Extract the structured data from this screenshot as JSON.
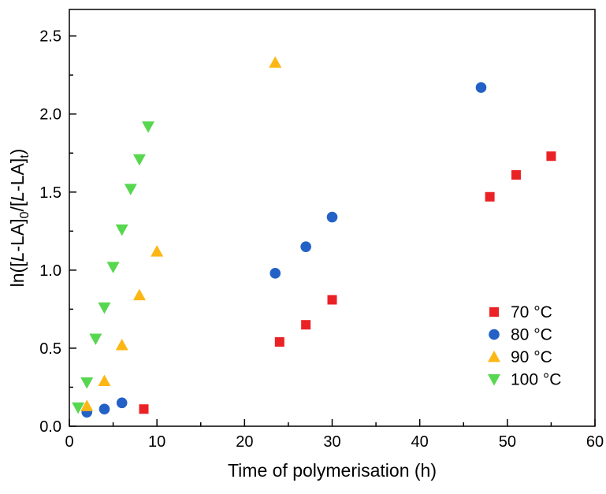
{
  "chart_data": {
    "type": "scatter",
    "title": "",
    "xlabel": "Time of polymerisation (h)",
    "ylabel": "ln([L-LA]0/[L-LA]t)",
    "ylabel_parts": [
      {
        "t": "ln([",
        "s": "n"
      },
      {
        "t": "L",
        "s": "i"
      },
      {
        "t": "-LA]",
        "s": "n"
      },
      {
        "t": "0",
        "s": "sub"
      },
      {
        "t": "/[",
        "s": "n"
      },
      {
        "t": "L",
        "s": "i"
      },
      {
        "t": "-LA]",
        "s": "n"
      },
      {
        "t": "t",
        "s": "sub"
      },
      {
        "t": ")",
        "s": "n"
      }
    ],
    "xlim": [
      0,
      60
    ],
    "ylim": [
      0,
      2.67
    ],
    "grid": false,
    "legend_position": "inside-right",
    "x_major_ticks": [
      {
        "v": 0,
        "label": "0"
      },
      {
        "v": 10,
        "label": "10"
      },
      {
        "v": 20,
        "label": "20"
      },
      {
        "v": 30,
        "label": "30"
      },
      {
        "v": 40,
        "label": "40"
      },
      {
        "v": 50,
        "label": "50"
      },
      {
        "v": 60,
        "label": "60"
      }
    ],
    "x_minor_step": 5,
    "y_major_ticks": [
      {
        "v": 0,
        "label": "0.0"
      },
      {
        "v": 0.5,
        "label": "0.5"
      },
      {
        "v": 1.0,
        "label": "1.0"
      },
      {
        "v": 1.5,
        "label": "1.5"
      },
      {
        "v": 2.0,
        "label": "2.0"
      },
      {
        "v": 2.5,
        "label": "2.5"
      }
    ],
    "y_minor_step": 0.25,
    "series": [
      {
        "name": "70 °C",
        "marker": "square",
        "color": "#ea2125",
        "points": [
          [
            8.5,
            0.11
          ],
          [
            24,
            0.54
          ],
          [
            27,
            0.65
          ],
          [
            30,
            0.81
          ],
          [
            48,
            1.47
          ],
          [
            51,
            1.61
          ],
          [
            55,
            1.73
          ]
        ]
      },
      {
        "name": "80 °C",
        "marker": "circle",
        "color": "#2361c7",
        "points": [
          [
            2,
            0.09
          ],
          [
            4,
            0.11
          ],
          [
            6,
            0.15
          ],
          [
            23.5,
            0.98
          ],
          [
            27,
            1.15
          ],
          [
            30,
            1.34
          ],
          [
            47,
            2.17
          ]
        ]
      },
      {
        "name": "90 °C",
        "marker": "triangle-up",
        "color": "#fcb714",
        "points": [
          [
            2,
            0.13
          ],
          [
            4,
            0.29
          ],
          [
            6,
            0.52
          ],
          [
            8,
            0.84
          ],
          [
            10,
            1.12
          ],
          [
            23.5,
            2.33
          ]
        ]
      },
      {
        "name": "100 °C",
        "marker": "triangle-down",
        "color": "#57d64f",
        "points": [
          [
            1,
            0.12
          ],
          [
            2,
            0.28
          ],
          [
            3,
            0.56
          ],
          [
            4,
            0.76
          ],
          [
            5,
            1.02
          ],
          [
            6,
            1.26
          ],
          [
            7,
            1.52
          ],
          [
            8,
            1.71
          ],
          [
            9,
            1.92
          ]
        ]
      }
    ]
  }
}
